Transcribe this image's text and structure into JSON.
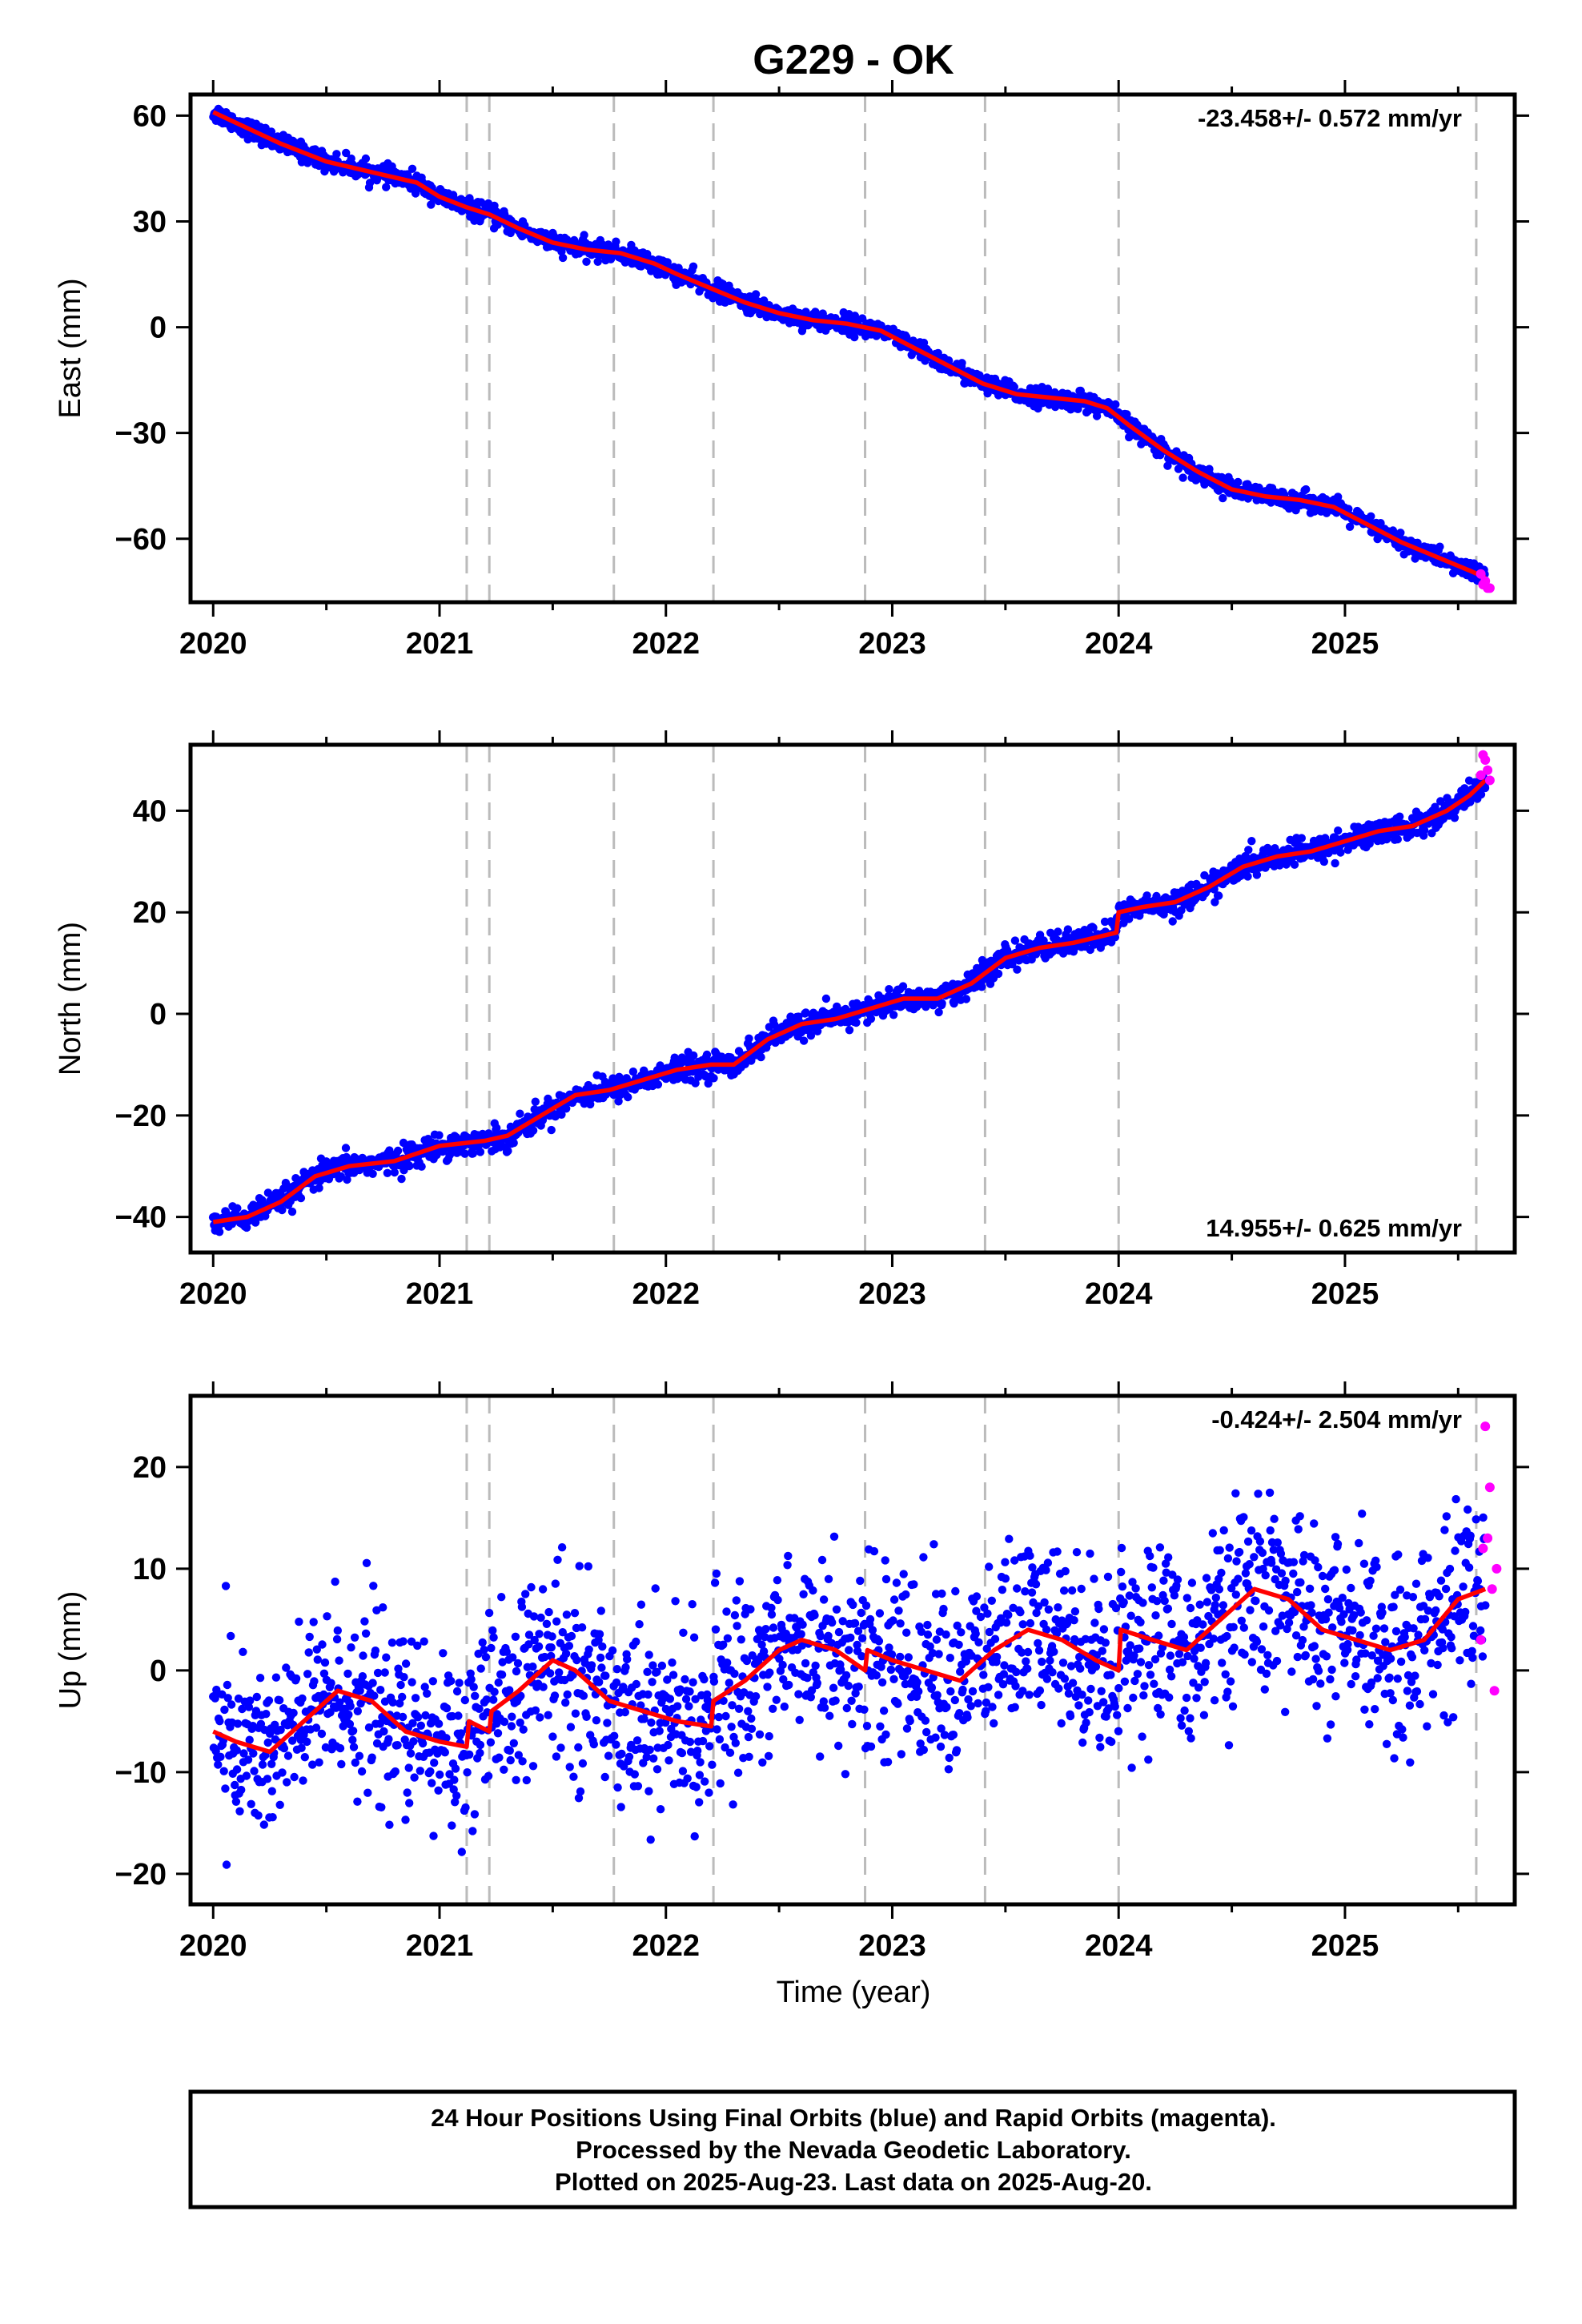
{
  "title": "G229 - OK",
  "xlabel": "Time (year)",
  "footer": {
    "line1": "24 Hour Positions Using Final Orbits (blue) and Rapid Orbits (magenta).",
    "line2": "Processed by the Nevada Geodetic Laboratory.",
    "line3": "Plotted on 2025-Aug-23. Last data on 2025-Aug-20."
  },
  "colors": {
    "final_orbits": "#0000ff",
    "rapid_orbits": "#ff00ff",
    "model_fit": "#ff0000",
    "event_lines": "#bbbbbb",
    "frame": "#000000"
  },
  "chart_data": [
    {
      "type": "scatter",
      "panel": "east",
      "ylabel": "East (mm)",
      "rate_label": "-23.458+/- 0.572 mm/yr",
      "rate_position": "top-right",
      "xlim": [
        2019.9,
        2025.75
      ],
      "ylim": [
        -78,
        66
      ],
      "xticks": [
        2020,
        2021,
        2022,
        2023,
        2024,
        2025
      ],
      "yticks": [
        -60,
        -30,
        0,
        30,
        60
      ],
      "event_lines": [
        2021.12,
        2021.22,
        2021.77,
        2022.21,
        2022.88,
        2023.41,
        2024.0,
        2025.58
      ],
      "grid": false,
      "noise_mm": 1.3,
      "fit": {
        "name": "model fit",
        "x": [
          2020.0,
          2020.1,
          2020.3,
          2020.5,
          2020.7,
          2020.9,
          2021.0,
          2021.12,
          2021.22,
          2021.35,
          2021.5,
          2021.65,
          2021.8,
          2021.95,
          2022.05,
          2022.2,
          2022.35,
          2022.5,
          2022.65,
          2022.8,
          2022.95,
          2023.1,
          2023.25,
          2023.4,
          2023.55,
          2023.7,
          2023.85,
          2023.95,
          2024.05,
          2024.2,
          2024.35,
          2024.5,
          2024.65,
          2024.8,
          2024.95,
          2025.1,
          2025.25,
          2025.4,
          2025.55,
          2025.62
        ],
        "y": [
          61,
          58,
          52,
          47,
          44,
          41,
          37,
          34,
          32,
          28,
          24,
          22,
          21,
          18,
          15,
          11,
          7,
          4,
          2,
          1,
          -1,
          -6,
          -11,
          -16,
          -19,
          -20,
          -21,
          -23,
          -28,
          -35,
          -41,
          -46,
          -48,
          -49,
          -51,
          -56,
          -61,
          -65,
          -69,
          -71
        ]
      },
      "rapid": {
        "name": "rapid orbits",
        "x": [
          2025.6,
          2025.61,
          2025.62,
          2025.63,
          2025.64
        ],
        "y": [
          -70,
          -73,
          -72,
          -74,
          -74
        ]
      }
    },
    {
      "type": "scatter",
      "panel": "north",
      "ylabel": "North (mm)",
      "rate_label": "14.955+/- 0.625 mm/yr",
      "rate_position": "bottom-right",
      "xlim": [
        2019.9,
        2025.75
      ],
      "ylim": [
        -47,
        53
      ],
      "xticks": [
        2020,
        2021,
        2022,
        2023,
        2024,
        2025
      ],
      "yticks": [
        -40,
        -20,
        0,
        20,
        40
      ],
      "event_lines": [
        2021.12,
        2021.22,
        2021.77,
        2022.21,
        2022.88,
        2023.41,
        2024.0,
        2025.58
      ],
      "grid": false,
      "noise_mm": 1.2,
      "fit": {
        "name": "model fit",
        "x": [
          2020.0,
          2020.15,
          2020.3,
          2020.45,
          2020.6,
          2020.8,
          2021.0,
          2021.2,
          2021.3,
          2021.45,
          2021.6,
          2021.75,
          2021.9,
          2022.05,
          2022.2,
          2022.3,
          2022.45,
          2022.6,
          2022.75,
          2022.9,
          2023.05,
          2023.2,
          2023.35,
          2023.5,
          2023.65,
          2023.8,
          2023.99,
          2024.0,
          2024.1,
          2024.25,
          2024.4,
          2024.55,
          2024.7,
          2024.85,
          2025.0,
          2025.15,
          2025.3,
          2025.45,
          2025.55,
          2025.62
        ],
        "y": [
          -41,
          -40,
          -37,
          -32,
          -30,
          -29,
          -26,
          -25,
          -24,
          -20,
          -16,
          -15,
          -13,
          -11,
          -10,
          -10,
          -5,
          -2,
          -1,
          1,
          3,
          3,
          6,
          11,
          13,
          14,
          16,
          20,
          21,
          22,
          25,
          29,
          31,
          32,
          34,
          36,
          37,
          40,
          43,
          46
        ]
      },
      "rapid": {
        "name": "rapid orbits",
        "x": [
          2025.6,
          2025.61,
          2025.62,
          2025.63,
          2025.64
        ],
        "y": [
          47,
          51,
          50,
          48,
          46
        ]
      }
    },
    {
      "type": "scatter",
      "panel": "up",
      "ylabel": "Up (mm)",
      "rate_label": "-0.424+/- 2.504 mm/yr",
      "rate_position": "top-right",
      "xlim": [
        2019.9,
        2025.75
      ],
      "ylim": [
        -23,
        27
      ],
      "xticks": [
        2020,
        2021,
        2022,
        2023,
        2024,
        2025
      ],
      "yticks": [
        -20,
        -10,
        0,
        10,
        20
      ],
      "event_lines": [
        2021.12,
        2021.22,
        2021.77,
        2022.21,
        2022.88,
        2023.41,
        2024.0,
        2025.58
      ],
      "grid": false,
      "noise_mm": 4.5,
      "fit": {
        "name": "model fit",
        "x": [
          2020.0,
          2020.1,
          2020.25,
          2020.4,
          2020.55,
          2020.7,
          2020.85,
          2021.0,
          2021.12,
          2021.13,
          2021.22,
          2021.23,
          2021.35,
          2021.5,
          2021.6,
          2021.75,
          2021.9,
          2022.05,
          2022.2,
          2022.21,
          2022.35,
          2022.5,
          2022.6,
          2022.75,
          2022.88,
          2022.89,
          2023.0,
          2023.15,
          2023.3,
          2023.45,
          2023.6,
          2023.75,
          2023.9,
          2024.0,
          2024.01,
          2024.15,
          2024.3,
          2024.45,
          2024.6,
          2024.75,
          2024.9,
          2025.05,
          2025.2,
          2025.35,
          2025.5,
          2025.62
        ],
        "y": [
          -6,
          -7,
          -8,
          -5,
          -2,
          -3,
          -6,
          -7,
          -7.5,
          -5,
          -6,
          -4,
          -2,
          1,
          0,
          -3,
          -4,
          -5,
          -5.5,
          -3,
          -1,
          2,
          3,
          2,
          0,
          2,
          1,
          0,
          -1,
          2,
          4,
          3,
          1,
          0,
          4,
          3,
          2,
          5,
          8,
          7,
          4,
          3,
          2,
          3,
          7,
          8
        ]
      },
      "rapid": {
        "name": "rapid orbits",
        "x": [
          2025.6,
          2025.61,
          2025.62,
          2025.63,
          2025.64,
          2025.65,
          2025.66,
          2025.67
        ],
        "y": [
          3,
          12,
          24,
          13,
          18,
          8,
          -2,
          10
        ]
      }
    }
  ]
}
